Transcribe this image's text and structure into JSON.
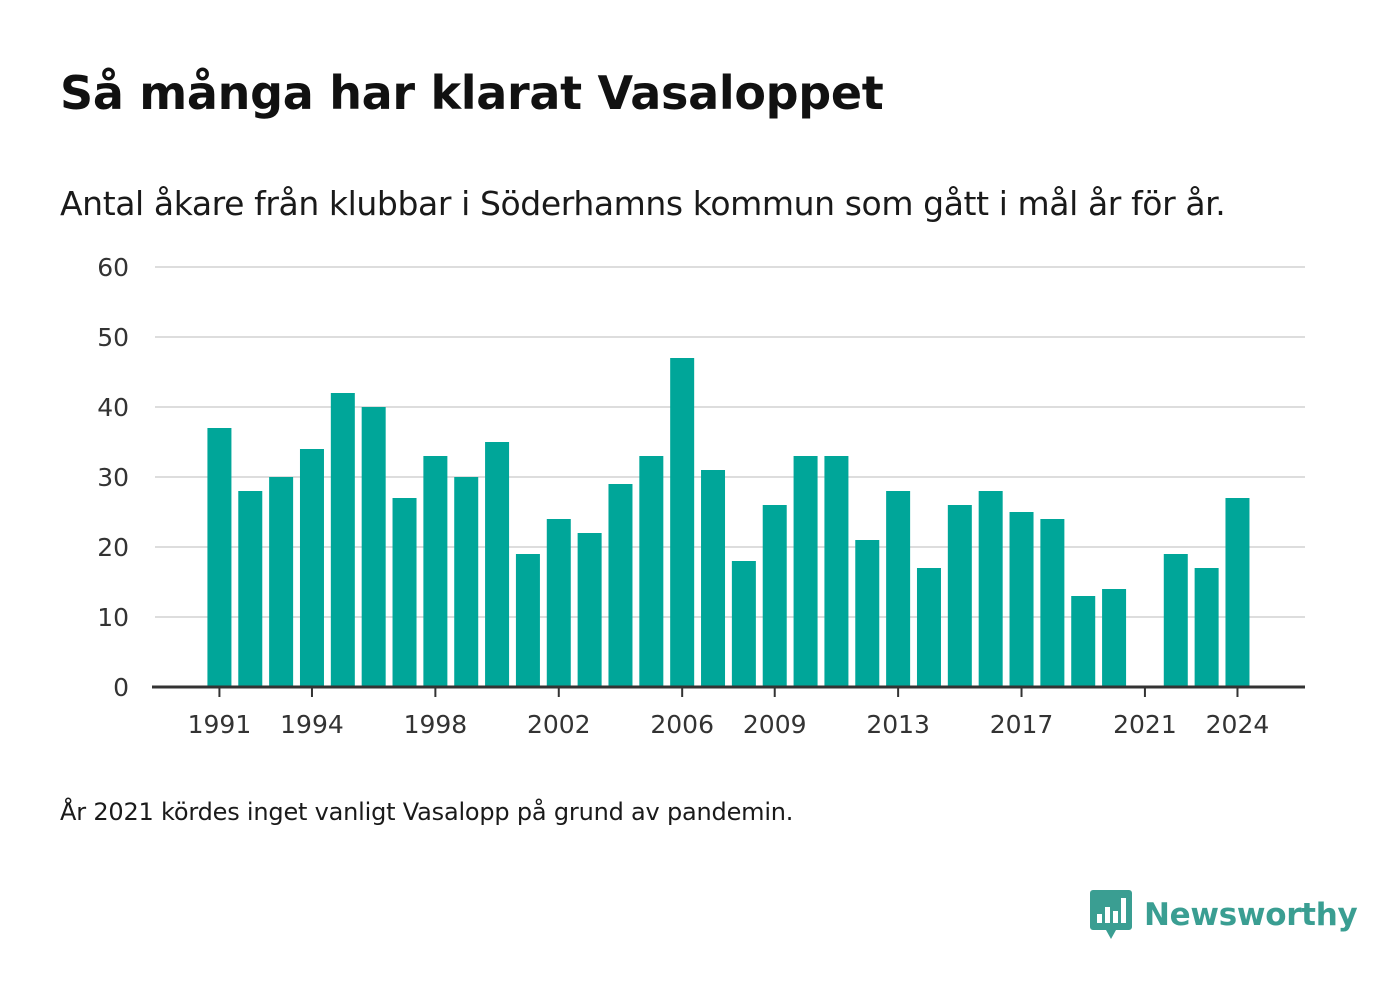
{
  "header": {
    "title": "Så många har klarat Vasaloppet",
    "subtitle": "Antal åkare från klubbar i Söderhamns kommun som gått i mål år för år."
  },
  "footer": {
    "note": "År 2021 kördes inget vanligt Vasalopp på grund av pandemin.",
    "brand": "Newsworthy",
    "brand_icon": "bar-chart-speech-bubble-icon"
  },
  "colors": {
    "bar": "#00a699",
    "grid": "#dddddd",
    "axis": "#333333",
    "brand": "#3a9e92"
  },
  "chart_data": {
    "type": "bar",
    "categories": [
      "1991",
      "1992",
      "1993",
      "1994",
      "1995",
      "1996",
      "1997",
      "1998",
      "1999",
      "2000",
      "2001",
      "2002",
      "2003",
      "2004",
      "2005",
      "2006",
      "2007",
      "2008",
      "2009",
      "2010",
      "2011",
      "2012",
      "2013",
      "2014",
      "2015",
      "2016",
      "2017",
      "2018",
      "2019",
      "2020",
      "2021",
      "2022",
      "2023",
      "2024"
    ],
    "values": [
      37,
      28,
      30,
      34,
      42,
      40,
      27,
      33,
      30,
      35,
      19,
      24,
      22,
      29,
      33,
      47,
      31,
      18,
      26,
      33,
      33,
      21,
      28,
      17,
      26,
      28,
      25,
      24,
      13,
      14,
      0,
      19,
      17,
      27
    ],
    "x_tick_labels": [
      "1991",
      "1994",
      "1998",
      "2002",
      "2006",
      "2009",
      "2013",
      "2017",
      "2021",
      "2024"
    ],
    "y_ticks": [
      0,
      10,
      20,
      30,
      40,
      50,
      60
    ],
    "ylim": [
      0,
      60
    ],
    "xlabel": "",
    "ylabel": "",
    "grid": true,
    "legend": "none"
  }
}
